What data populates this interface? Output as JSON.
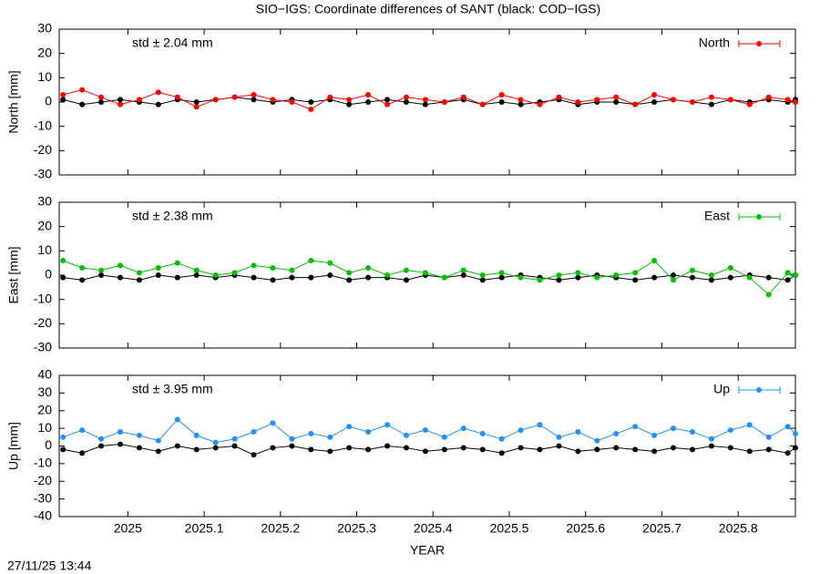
{
  "title": "SIO−IGS: Coordinate differences of SANT (black: COD−IGS)",
  "xlabel": "YEAR",
  "timestamp": "27/11/25 13:44",
  "chart_data": [
    {
      "type": "line",
      "ylabel": "North [mm]",
      "annotation": "std ± 2.04 mm",
      "xlim": [
        2024.91,
        2025.875
      ],
      "xticks": [
        2025,
        2025.1,
        2025.2,
        2025.3,
        2025.4,
        2025.5,
        2025.6,
        2025.7,
        2025.8
      ],
      "ylim": [
        -30,
        30
      ],
      "yticks": [
        -30,
        -20,
        -10,
        0,
        10,
        20,
        30
      ],
      "x": [
        2024.915,
        2024.94,
        2024.965,
        2024.99,
        2025.015,
        2025.04,
        2025.065,
        2025.09,
        2025.115,
        2025.14,
        2025.165,
        2025.19,
        2025.215,
        2025.24,
        2025.265,
        2025.29,
        2025.315,
        2025.34,
        2025.365,
        2025.39,
        2025.415,
        2025.44,
        2025.465,
        2025.49,
        2025.515,
        2025.54,
        2025.565,
        2025.59,
        2025.615,
        2025.64,
        2025.665,
        2025.69,
        2025.715,
        2025.74,
        2025.765,
        2025.79,
        2025.815,
        2025.84,
        2025.865,
        2025.875
      ],
      "series": [
        {
          "color": "#000000",
          "values": [
            1,
            -1,
            0,
            1,
            0,
            -1,
            1,
            0,
            1,
            2,
            1,
            0,
            1,
            0,
            1,
            -1,
            0,
            1,
            0,
            -1,
            0,
            1,
            -1,
            0,
            -1,
            0,
            1,
            -1,
            0,
            0,
            -1,
            0,
            1,
            0,
            -1,
            1,
            0,
            1,
            0,
            1
          ]
        },
        {
          "name": "North",
          "color": "#ff0000",
          "values": [
            3,
            5,
            2,
            -1,
            1,
            4,
            2,
            -2,
            1,
            2,
            3,
            1,
            0,
            -3,
            2,
            1,
            3,
            -1,
            2,
            1,
            0,
            2,
            -1,
            3,
            1,
            -1,
            2,
            0,
            1,
            2,
            -1,
            3,
            1,
            0,
            2,
            1,
            -1,
            2,
            1,
            0
          ]
        }
      ]
    },
    {
      "type": "line",
      "ylabel": "East [mm]",
      "annotation": "std ± 2.38 mm",
      "xlim": [
        2024.91,
        2025.875
      ],
      "xticks": [
        2025,
        2025.1,
        2025.2,
        2025.3,
        2025.4,
        2025.5,
        2025.6,
        2025.7,
        2025.8
      ],
      "ylim": [
        -30,
        30
      ],
      "yticks": [
        -30,
        -20,
        -10,
        0,
        10,
        20,
        30
      ],
      "x": [
        2024.915,
        2024.94,
        2024.965,
        2024.99,
        2025.015,
        2025.04,
        2025.065,
        2025.09,
        2025.115,
        2025.14,
        2025.165,
        2025.19,
        2025.215,
        2025.24,
        2025.265,
        2025.29,
        2025.315,
        2025.34,
        2025.365,
        2025.39,
        2025.415,
        2025.44,
        2025.465,
        2025.49,
        2025.515,
        2025.54,
        2025.565,
        2025.59,
        2025.615,
        2025.64,
        2025.665,
        2025.69,
        2025.715,
        2025.74,
        2025.765,
        2025.79,
        2025.815,
        2025.84,
        2025.865,
        2025.875
      ],
      "series": [
        {
          "color": "#000000",
          "values": [
            -1,
            -2,
            0,
            -1,
            -2,
            0,
            -1,
            0,
            -1,
            0,
            -1,
            -2,
            -1,
            -1,
            0,
            -2,
            -1,
            -1,
            -2,
            0,
            -1,
            0,
            -2,
            -1,
            0,
            -1,
            -2,
            -1,
            0,
            -1,
            -2,
            -1,
            0,
            -1,
            -2,
            -1,
            0,
            -1,
            -2,
            0
          ]
        },
        {
          "name": "East",
          "color": "#00c000",
          "values": [
            6,
            3,
            2,
            4,
            1,
            3,
            5,
            2,
            0,
            1,
            4,
            3,
            2,
            6,
            5,
            1,
            3,
            0,
            2,
            1,
            -1,
            2,
            0,
            1,
            -1,
            -2,
            0,
            1,
            -1,
            0,
            1,
            6,
            -2,
            2,
            0,
            3,
            -1,
            -8,
            1,
            0
          ]
        }
      ]
    },
    {
      "type": "line",
      "ylabel": "Up [mm]",
      "annotation": "std ± 3.95 mm",
      "xlim": [
        2024.91,
        2025.875
      ],
      "xticks": [
        2025,
        2025.1,
        2025.2,
        2025.3,
        2025.4,
        2025.5,
        2025.6,
        2025.7,
        2025.8
      ],
      "ylim": [
        -40,
        40
      ],
      "yticks": [
        -40,
        -30,
        -20,
        -10,
        0,
        10,
        20,
        30,
        40
      ],
      "x": [
        2024.915,
        2024.94,
        2024.965,
        2024.99,
        2025.015,
        2025.04,
        2025.065,
        2025.09,
        2025.115,
        2025.14,
        2025.165,
        2025.19,
        2025.215,
        2025.24,
        2025.265,
        2025.29,
        2025.315,
        2025.34,
        2025.365,
        2025.39,
        2025.415,
        2025.44,
        2025.465,
        2025.49,
        2025.515,
        2025.54,
        2025.565,
        2025.59,
        2025.615,
        2025.64,
        2025.665,
        2025.69,
        2025.715,
        2025.74,
        2025.765,
        2025.79,
        2025.815,
        2025.84,
        2025.865,
        2025.875
      ],
      "series": [
        {
          "color": "#000000",
          "values": [
            -2,
            -4,
            0,
            1,
            -1,
            -3,
            0,
            -2,
            -1,
            0,
            -5,
            -1,
            0,
            -2,
            -3,
            -1,
            -2,
            0,
            -1,
            -3,
            -2,
            -1,
            -2,
            -4,
            -1,
            -2,
            0,
            -3,
            -2,
            -1,
            -2,
            -3,
            -1,
            -2,
            0,
            -1,
            -3,
            -2,
            -4,
            -1
          ]
        },
        {
          "name": "Up",
          "color": "#1e90ff",
          "values": [
            5,
            9,
            4,
            8,
            6,
            3,
            15,
            6,
            2,
            4,
            8,
            13,
            4,
            7,
            5,
            11,
            8,
            12,
            6,
            9,
            5,
            10,
            7,
            4,
            9,
            12,
            5,
            8,
            3,
            7,
            11,
            6,
            10,
            8,
            4,
            9,
            12,
            5,
            11,
            7
          ]
        }
      ]
    }
  ]
}
